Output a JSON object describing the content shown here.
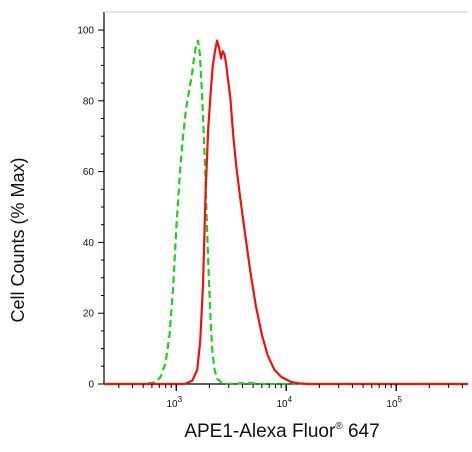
{
  "chart_data": {
    "type": "line",
    "title": "",
    "xlabel": {
      "main": "APE1-Alexa Fluor",
      "superscript": "®",
      "suffix": " 647"
    },
    "ylabel": "Cell Counts (% Max)",
    "x_scale": "log",
    "xlim": [
      220,
      450000
    ],
    "ylim": [
      0,
      100
    ],
    "y_ticks": [
      0,
      20,
      40,
      60,
      80,
      100
    ],
    "y_tick_labels": [
      "0",
      "20",
      "40",
      "60",
      "80",
      "100"
    ],
    "x_ticks": [
      1000,
      10000,
      100000
    ],
    "x_tick_labels": [
      {
        "base": "10",
        "exp": "3"
      },
      {
        "base": "10",
        "exp": "4"
      },
      {
        "base": "10",
        "exp": "5"
      }
    ],
    "grid": false,
    "series": [
      {
        "color": "#22cc22",
        "style": "dashed",
        "points": [
          [
            220,
            0
          ],
          [
            500,
            0
          ],
          [
            650,
            0.5
          ],
          [
            720,
            2
          ],
          [
            800,
            6
          ],
          [
            870,
            14
          ],
          [
            940,
            28
          ],
          [
            1000,
            44
          ],
          [
            1080,
            60
          ],
          [
            1150,
            70
          ],
          [
            1230,
            78
          ],
          [
            1310,
            83
          ],
          [
            1380,
            87
          ],
          [
            1450,
            92
          ],
          [
            1520,
            96
          ],
          [
            1580,
            97
          ],
          [
            1640,
            93
          ],
          [
            1700,
            84
          ],
          [
            1760,
            74
          ],
          [
            1830,
            60
          ],
          [
            1900,
            45
          ],
          [
            1970,
            31
          ],
          [
            2050,
            18
          ],
          [
            2130,
            9
          ],
          [
            2230,
            4
          ],
          [
            2350,
            1.5
          ],
          [
            2600,
            0.3
          ],
          [
            3000,
            0
          ],
          [
            4500,
            0.3
          ],
          [
            6000,
            0
          ],
          [
            8000,
            0
          ],
          [
            450000,
            0
          ]
        ]
      },
      {
        "color": "#ee1111",
        "style": "solid",
        "points": [
          [
            220,
            0
          ],
          [
            1200,
            0
          ],
          [
            1400,
            1
          ],
          [
            1550,
            4
          ],
          [
            1650,
            12
          ],
          [
            1750,
            28
          ],
          [
            1850,
            55
          ],
          [
            1950,
            72
          ],
          [
            2050,
            82
          ],
          [
            2150,
            90
          ],
          [
            2250,
            94
          ],
          [
            2350,
            97
          ],
          [
            2450,
            95
          ],
          [
            2550,
            92
          ],
          [
            2650,
            94
          ],
          [
            2750,
            93
          ],
          [
            2850,
            90
          ],
          [
            2950,
            86
          ],
          [
            3100,
            81
          ],
          [
            3300,
            70
          ],
          [
            3500,
            62
          ],
          [
            3800,
            53
          ],
          [
            4200,
            43
          ],
          [
            4700,
            32
          ],
          [
            5300,
            22
          ],
          [
            6000,
            14
          ],
          [
            6800,
            8
          ],
          [
            7800,
            4
          ],
          [
            9000,
            2
          ],
          [
            11000,
            0.6
          ],
          [
            13000,
            0.2
          ],
          [
            16000,
            0
          ],
          [
            450000,
            0
          ]
        ]
      }
    ]
  }
}
